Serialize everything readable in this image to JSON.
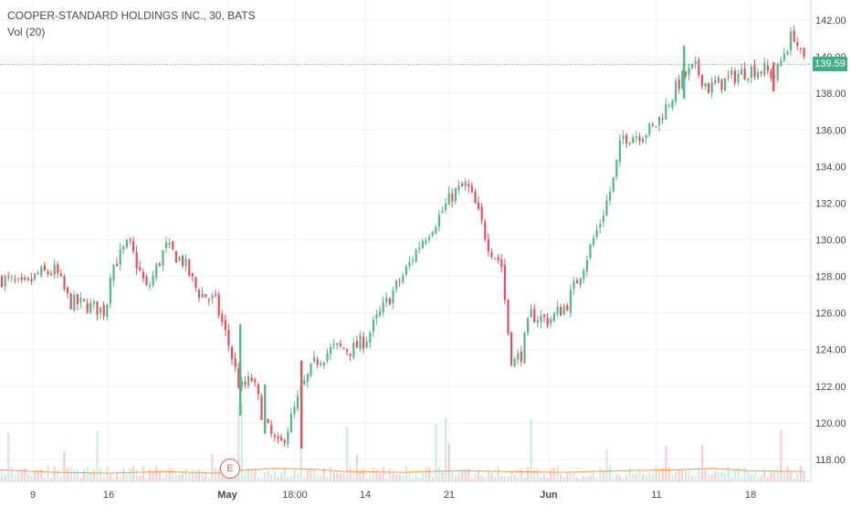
{
  "legend": {
    "symbol": "COOPER-STANDARD HOLDINGS INC., 30, BATS",
    "indicator": "Vol (20)"
  },
  "last_price": "139.59",
  "earnings_marker": "E",
  "colors": {
    "up": "#53b987",
    "down": "#eb4d5c",
    "ma": "#ff9a4a",
    "price_line": "#3fae8a"
  },
  "chart_data": {
    "type": "candlestick",
    "y_axis": {
      "range": [
        116.8,
        142.8
      ],
      "ticks": [
        "118.00",
        "120.00",
        "122.00",
        "124.00",
        "126.00",
        "128.00",
        "130.00",
        "132.00",
        "134.00",
        "136.00",
        "138.00",
        "140.00",
        "142.00"
      ],
      "side": "right"
    },
    "x_axis": {
      "tick_labels": [
        "9",
        "16",
        "May",
        "18:00",
        "14",
        "21",
        "Jun",
        "11",
        "18"
      ]
    },
    "grid": true,
    "price_path": [
      [
        0,
        127.9
      ],
      [
        25,
        127.4
      ],
      [
        40,
        128.1
      ],
      [
        60,
        128.3
      ],
      [
        75,
        126.6
      ],
      [
        95,
        126.4
      ],
      [
        115,
        126.1
      ],
      [
        120,
        128.4
      ],
      [
        140,
        129.8
      ],
      [
        160,
        127.2
      ],
      [
        180,
        129.6
      ],
      [
        200,
        128.8
      ],
      [
        215,
        127.2
      ],
      [
        235,
        126.6
      ],
      [
        250,
        124.2
      ],
      [
        262,
        121.8
      ],
      [
        275,
        122.4
      ],
      [
        290,
        119.8
      ],
      [
        305,
        118.6
      ],
      [
        320,
        120.5
      ],
      [
        330,
        121.9
      ],
      [
        345,
        123.4
      ],
      [
        365,
        124.1
      ],
      [
        385,
        124.0
      ],
      [
        400,
        124.6
      ],
      [
        420,
        126.4
      ],
      [
        440,
        128.0
      ],
      [
        460,
        129.9
      ],
      [
        480,
        131.3
      ],
      [
        495,
        132.5
      ],
      [
        510,
        133.0
      ],
      [
        520,
        131.8
      ],
      [
        535,
        129.6
      ],
      [
        548,
        128.7
      ],
      [
        555,
        125.1
      ],
      [
        560,
        123.2
      ],
      [
        570,
        123.8
      ],
      [
        580,
        125.9
      ],
      [
        600,
        125.6
      ],
      [
        620,
        126.5
      ],
      [
        640,
        128.9
      ],
      [
        655,
        130.8
      ],
      [
        670,
        133.1
      ],
      [
        680,
        135.6
      ],
      [
        700,
        135.8
      ],
      [
        715,
        136.1
      ],
      [
        730,
        137.4
      ],
      [
        745,
        138.8
      ],
      [
        760,
        139.4
      ],
      [
        775,
        138.3
      ],
      [
        790,
        138.6
      ],
      [
        805,
        139.0
      ],
      [
        820,
        139.3
      ],
      [
        835,
        139.3
      ],
      [
        848,
        138.9
      ],
      [
        858,
        140.3
      ],
      [
        868,
        141.3
      ],
      [
        878,
        139.7
      ]
    ],
    "volume_ma_path": [
      [
        0,
        0.14
      ],
      [
        60,
        0.11
      ],
      [
        120,
        0.1
      ],
      [
        180,
        0.12
      ],
      [
        240,
        0.1
      ],
      [
        260,
        0.13
      ],
      [
        300,
        0.16
      ],
      [
        340,
        0.15
      ],
      [
        380,
        0.12
      ],
      [
        440,
        0.11
      ],
      [
        500,
        0.13
      ],
      [
        560,
        0.12
      ],
      [
        620,
        0.11
      ],
      [
        680,
        0.13
      ],
      [
        740,
        0.14
      ],
      [
        780,
        0.16
      ],
      [
        820,
        0.13
      ],
      [
        880,
        0.12
      ]
    ]
  }
}
